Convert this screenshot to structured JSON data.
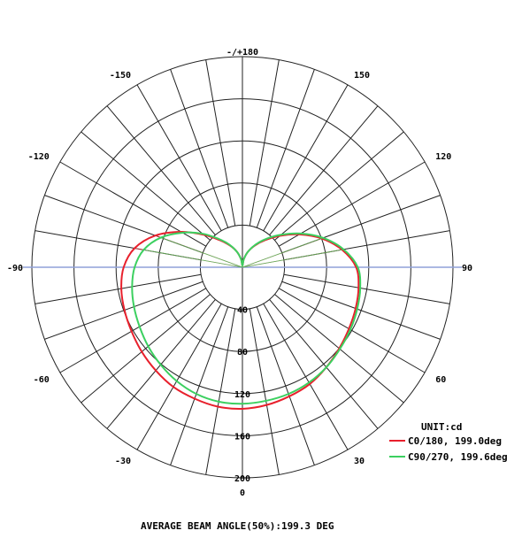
{
  "chart_data": {
    "type": "polar",
    "unit_label": "UNIT:cd",
    "caption": "AVERAGE BEAM ANGLE(50%):199.3 DEG",
    "rmax": 250,
    "radial_ticks": [
      40,
      80,
      120,
      160,
      200
    ],
    "ring_values": [
      50,
      100,
      150,
      200,
      250
    ],
    "angle_labels": [
      {
        "deg": 180,
        "text": "-/+180"
      },
      {
        "deg": -150,
        "text": "-150"
      },
      {
        "deg": 150,
        "text": "150"
      },
      {
        "deg": -120,
        "text": "-120"
      },
      {
        "deg": 120,
        "text": "120"
      },
      {
        "deg": -90,
        "text": "-90"
      },
      {
        "deg": 90,
        "text": "90"
      },
      {
        "deg": -60,
        "text": "-60"
      },
      {
        "deg": 60,
        "text": "60"
      },
      {
        "deg": -30,
        "text": "-30"
      },
      {
        "deg": 30,
        "text": "30"
      },
      {
        "deg": 0,
        "text": "0"
      }
    ],
    "radial_labels": [
      {
        "value": 40,
        "text": "40"
      },
      {
        "value": 80,
        "text": "80"
      },
      {
        "value": 120,
        "text": "120"
      },
      {
        "value": 160,
        "text": "160"
      },
      {
        "value": 200,
        "text": "200"
      }
    ],
    "series": [
      {
        "name": "C0/180, 199.0deg",
        "color": "#e8202c",
        "points": [
          [
            0,
            168
          ],
          [
            10,
            166
          ],
          [
            20,
            163
          ],
          [
            30,
            160
          ],
          [
            40,
            155
          ],
          [
            50,
            150
          ],
          [
            60,
            146
          ],
          [
            70,
            143
          ],
          [
            80,
            140
          ],
          [
            90,
            135
          ],
          [
            100,
            120
          ],
          [
            110,
            100
          ],
          [
            120,
            78
          ],
          [
            130,
            58
          ],
          [
            140,
            42
          ],
          [
            150,
            30
          ],
          [
            160,
            20
          ],
          [
            170,
            10
          ],
          [
            180,
            2
          ],
          [
            -170,
            10
          ],
          [
            -160,
            20
          ],
          [
            -150,
            30
          ],
          [
            -140,
            42
          ],
          [
            -130,
            60
          ],
          [
            -120,
            84
          ],
          [
            -110,
            110
          ],
          [
            -100,
            130
          ],
          [
            -90,
            141
          ],
          [
            -80,
            146
          ],
          [
            -70,
            149
          ],
          [
            -60,
            152
          ],
          [
            -50,
            156
          ],
          [
            -40,
            160
          ],
          [
            -30,
            164
          ],
          [
            -20,
            166
          ],
          [
            -10,
            168
          ]
        ]
      },
      {
        "name": "C90/270, 199.6deg",
        "color": "#3cd060",
        "points": [
          [
            0,
            162
          ],
          [
            10,
            161
          ],
          [
            20,
            160
          ],
          [
            30,
            158
          ],
          [
            40,
            155
          ],
          [
            50,
            151
          ],
          [
            60,
            148
          ],
          [
            70,
            145
          ],
          [
            80,
            142
          ],
          [
            90,
            137
          ],
          [
            100,
            122
          ],
          [
            110,
            102
          ],
          [
            120,
            80
          ],
          [
            130,
            60
          ],
          [
            140,
            44
          ],
          [
            150,
            31
          ],
          [
            160,
            20
          ],
          [
            170,
            10
          ],
          [
            180,
            2
          ],
          [
            -170,
            10
          ],
          [
            -160,
            20
          ],
          [
            -150,
            31
          ],
          [
            -140,
            44
          ],
          [
            -130,
            62
          ],
          [
            -120,
            82
          ],
          [
            -110,
            103
          ],
          [
            -100,
            119
          ],
          [
            -90,
            128
          ],
          [
            -80,
            133
          ],
          [
            -70,
            137
          ],
          [
            -60,
            141
          ],
          [
            -50,
            146
          ],
          [
            -40,
            151
          ],
          [
            -30,
            156
          ],
          [
            -20,
            160
          ],
          [
            -10,
            162
          ]
        ]
      }
    ]
  },
  "colors": {
    "grid": "#222222",
    "axis": "#8fa0d8"
  }
}
